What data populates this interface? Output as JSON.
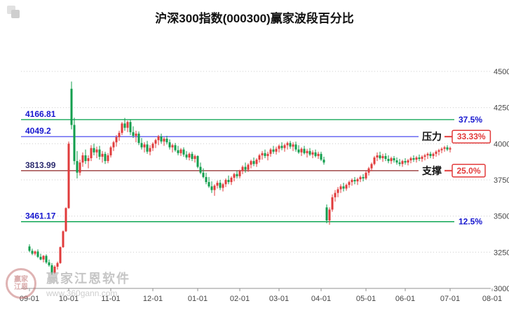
{
  "header": {
    "title": "沪深300指数(000300)赢家波段百分比"
  },
  "watermark": {
    "brand": "赢家江恩软件",
    "url": "www.360gann.com",
    "logo_top": "赢家",
    "logo_bottom": "江恩"
  },
  "colors": {
    "up": "#e03b3b",
    "down": "#129e4d",
    "box_red": "#e23a3a",
    "axis_text": "#444444",
    "grid": "#cccccc",
    "axis_line": "#909090"
  },
  "chart_data": {
    "type": "candlestick",
    "title": "沪深300指数(000300)赢家波段百分比",
    "legend": [],
    "grid": "dotted-horizontal",
    "y_axis": {
      "min": 3000,
      "max": 4500,
      "ticks": [
        4500,
        4250,
        4000,
        3750,
        3500,
        3250,
        3000
      ],
      "position": "right"
    },
    "x_axis": {
      "months": [
        {
          "label": "09-01",
          "i": 0
        },
        {
          "label": "10-01",
          "i": 14
        },
        {
          "label": "11-01",
          "i": 29
        },
        {
          "label": "12-01",
          "i": 44
        },
        {
          "label": "01-01",
          "i": 60
        },
        {
          "label": "02-01",
          "i": 75
        },
        {
          "label": "03-01",
          "i": 89
        },
        {
          "label": "04-01",
          "i": 104
        },
        {
          "label": "05-01",
          "i": 120
        },
        {
          "label": "06-01",
          "i": 134
        },
        {
          "label": "07-01",
          "i": 150
        },
        {
          "label": "08-01",
          "i": 165
        }
      ]
    },
    "levels": [
      {
        "price": 4166.81,
        "price_label": "4166.81",
        "right_label": "37.5%",
        "line_color": "#00a04a",
        "label_color": "#1717cf"
      },
      {
        "price": 4049.2,
        "price_label": "4049.2",
        "tag": "压力",
        "box_label": "33.33%",
        "line_color": "#5b5bf0",
        "label_color": "#1717cf"
      },
      {
        "price": 3813.99,
        "price_label": "3813.99",
        "tag": "支撑",
        "box_label": "25.0%",
        "line_color": "#9a3a3a",
        "label_color": "#2a2a6e"
      },
      {
        "price": 3461.17,
        "price_label": "3461.17",
        "right_label": "12.5%",
        "line_color": "#00a04a",
        "label_color": "#1717cf"
      }
    ],
    "candles": [
      [
        3290,
        3305,
        3250,
        3260
      ],
      [
        3260,
        3275,
        3230,
        3240
      ],
      [
        3240,
        3262,
        3228,
        3255
      ],
      [
        3255,
        3270,
        3210,
        3218
      ],
      [
        3218,
        3240,
        3195,
        3200
      ],
      [
        3200,
        3230,
        3180,
        3225
      ],
      [
        3225,
        3235,
        3170,
        3180
      ],
      [
        3180,
        3200,
        3150,
        3160
      ],
      [
        3160,
        3175,
        3095,
        3110
      ],
      [
        3110,
        3160,
        3100,
        3150
      ],
      [
        3150,
        3185,
        3130,
        3175
      ],
      [
        3175,
        3290,
        3170,
        3285
      ],
      [
        3285,
        3400,
        3280,
        3395
      ],
      [
        3395,
        3560,
        3390,
        3555
      ],
      [
        3555,
        4015,
        3550,
        4000
      ],
      [
        4380,
        4430,
        4100,
        4130
      ],
      [
        4130,
        4180,
        3855,
        3880
      ],
      [
        3880,
        3950,
        3760,
        3800
      ],
      [
        3800,
        3890,
        3780,
        3870
      ],
      [
        3870,
        3940,
        3840,
        3920
      ],
      [
        3920,
        3960,
        3860,
        3880
      ],
      [
        3880,
        3920,
        3830,
        3900
      ],
      [
        3900,
        3990,
        3880,
        3970
      ],
      [
        3970,
        4000,
        3920,
        3940
      ],
      [
        3940,
        3980,
        3900,
        3960
      ],
      [
        3960,
        3985,
        3890,
        3910
      ],
      [
        3910,
        3950,
        3870,
        3930
      ],
      [
        3930,
        3945,
        3860,
        3880
      ],
      [
        3880,
        3935,
        3865,
        3920
      ],
      [
        3920,
        3985,
        3905,
        3975
      ],
      [
        3975,
        4020,
        3950,
        4010
      ],
      [
        4010,
        4060,
        3980,
        4045
      ],
      [
        4045,
        4090,
        4020,
        4075
      ],
      [
        4075,
        4150,
        4060,
        4140
      ],
      [
        4140,
        4178,
        4090,
        4110
      ],
      [
        4110,
        4160,
        4080,
        4150
      ],
      [
        4150,
        4165,
        4060,
        4080
      ],
      [
        4080,
        4120,
        4040,
        4055
      ],
      [
        4055,
        4090,
        4010,
        4070
      ],
      [
        4070,
        4085,
        3990,
        4005
      ],
      [
        4005,
        4040,
        3960,
        3975
      ],
      [
        3975,
        4010,
        3940,
        3995
      ],
      [
        3995,
        4020,
        3930,
        3945
      ],
      [
        3945,
        3990,
        3920,
        3970
      ],
      [
        3970,
        4010,
        3950,
        4000
      ],
      [
        4000,
        4035,
        3970,
        4025
      ],
      [
        4025,
        4060,
        3990,
        4050
      ],
      [
        4050,
        4070,
        4000,
        4015
      ],
      [
        4015,
        4045,
        3985,
        4035
      ],
      [
        4035,
        4055,
        3995,
        4010
      ],
      [
        4010,
        4030,
        3960,
        3975
      ],
      [
        3975,
        4000,
        3940,
        3990
      ],
      [
        3990,
        4005,
        3945,
        3955
      ],
      [
        3955,
        3985,
        3920,
        3935
      ],
      [
        3935,
        3970,
        3915,
        3960
      ],
      [
        3960,
        3975,
        3910,
        3925
      ],
      [
        3925,
        3950,
        3890,
        3905
      ],
      [
        3905,
        3940,
        3885,
        3930
      ],
      [
        3930,
        3945,
        3880,
        3895
      ],
      [
        3895,
        3925,
        3870,
        3915
      ],
      [
        3915,
        3920,
        3830,
        3840
      ],
      [
        3840,
        3870,
        3790,
        3800
      ],
      [
        3800,
        3830,
        3760,
        3770
      ],
      [
        3770,
        3800,
        3720,
        3735
      ],
      [
        3735,
        3770,
        3695,
        3705
      ],
      [
        3705,
        3740,
        3660,
        3680
      ],
      [
        3680,
        3720,
        3640,
        3710
      ],
      [
        3710,
        3745,
        3690,
        3730
      ],
      [
        3730,
        3750,
        3680,
        3695
      ],
      [
        3695,
        3730,
        3670,
        3720
      ],
      [
        3720,
        3760,
        3700,
        3750
      ],
      [
        3750,
        3780,
        3720,
        3735
      ],
      [
        3735,
        3775,
        3715,
        3765
      ],
      [
        3765,
        3800,
        3740,
        3790
      ],
      [
        3790,
        3815,
        3760,
        3775
      ],
      [
        3775,
        3820,
        3760,
        3810
      ],
      [
        3810,
        3850,
        3790,
        3840
      ],
      [
        3840,
        3870,
        3800,
        3820
      ],
      [
        3820,
        3865,
        3805,
        3855
      ],
      [
        3855,
        3890,
        3830,
        3880
      ],
      [
        3880,
        3905,
        3845,
        3860
      ],
      [
        3860,
        3900,
        3840,
        3890
      ],
      [
        3890,
        3930,
        3870,
        3920
      ],
      [
        3920,
        3950,
        3890,
        3935
      ],
      [
        3935,
        3960,
        3900,
        3915
      ],
      [
        3915,
        3945,
        3885,
        3930
      ],
      [
        3930,
        3970,
        3910,
        3960
      ],
      [
        3960,
        3985,
        3930,
        3945
      ],
      [
        3945,
        3980,
        3925,
        3965
      ],
      [
        3965,
        3995,
        3940,
        3985
      ],
      [
        3985,
        4010,
        3955,
        3970
      ],
      [
        3970,
        4000,
        3945,
        3990
      ],
      [
        3990,
        4015,
        3960,
        4005
      ],
      [
        4005,
        4020,
        3965,
        3980
      ],
      [
        3980,
        4010,
        3950,
        3995
      ],
      [
        3995,
        4015,
        3945,
        3960
      ],
      [
        3960,
        3990,
        3930,
        3940
      ],
      [
        3940,
        3975,
        3915,
        3965
      ],
      [
        3965,
        3985,
        3925,
        3935
      ],
      [
        3935,
        3965,
        3905,
        3950
      ],
      [
        3950,
        3970,
        3915,
        3925
      ],
      [
        3925,
        3955,
        3900,
        3940
      ],
      [
        3940,
        3960,
        3905,
        3915
      ],
      [
        3915,
        3945,
        3895,
        3930
      ],
      [
        3930,
        3945,
        3880,
        3890
      ],
      [
        3890,
        3910,
        3855,
        3870
      ],
      [
        3560,
        3580,
        3450,
        3470
      ],
      [
        3470,
        3560,
        3440,
        3545
      ],
      [
        3545,
        3650,
        3530,
        3630
      ],
      [
        3630,
        3680,
        3600,
        3660
      ],
      [
        3660,
        3700,
        3630,
        3685
      ],
      [
        3685,
        3720,
        3660,
        3705
      ],
      [
        3705,
        3730,
        3670,
        3690
      ],
      [
        3690,
        3725,
        3675,
        3715
      ],
      [
        3715,
        3745,
        3695,
        3735
      ],
      [
        3735,
        3760,
        3710,
        3750
      ],
      [
        3750,
        3770,
        3720,
        3740
      ],
      [
        3740,
        3765,
        3715,
        3755
      ],
      [
        3755,
        3780,
        3735,
        3770
      ],
      [
        3770,
        3790,
        3740,
        3760
      ],
      [
        3760,
        3810,
        3750,
        3800
      ],
      [
        3800,
        3840,
        3780,
        3830
      ],
      [
        3830,
        3870,
        3810,
        3860
      ],
      [
        3860,
        3915,
        3850,
        3905
      ],
      [
        3905,
        3940,
        3880,
        3920
      ],
      [
        3920,
        3945,
        3890,
        3900
      ],
      [
        3900,
        3930,
        3875,
        3915
      ],
      [
        3915,
        3935,
        3880,
        3895
      ],
      [
        3895,
        3920,
        3865,
        3880
      ],
      [
        3880,
        3910,
        3860,
        3900
      ],
      [
        3900,
        3915,
        3870,
        3885
      ],
      [
        3885,
        3905,
        3855,
        3870
      ],
      [
        3870,
        3895,
        3845,
        3860
      ],
      [
        3860,
        3890,
        3840,
        3880
      ],
      [
        3880,
        3900,
        3855,
        3870
      ],
      [
        3870,
        3895,
        3850,
        3885
      ],
      [
        3885,
        3910,
        3865,
        3900
      ],
      [
        3900,
        3920,
        3875,
        3890
      ],
      [
        3890,
        3915,
        3870,
        3905
      ],
      [
        3905,
        3925,
        3880,
        3895
      ],
      [
        3895,
        3920,
        3875,
        3910
      ],
      [
        3910,
        3930,
        3885,
        3920
      ],
      [
        3920,
        3940,
        3895,
        3930
      ],
      [
        3930,
        3945,
        3900,
        3915
      ],
      [
        3915,
        3940,
        3895,
        3930
      ],
      [
        3930,
        3955,
        3910,
        3945
      ],
      [
        3945,
        3965,
        3920,
        3955
      ],
      [
        3955,
        3975,
        3935,
        3965
      ],
      [
        3965,
        3985,
        3945,
        3975
      ],
      [
        3975,
        3990,
        3950,
        3960
      ],
      [
        3960,
        3980,
        3940,
        3970
      ]
    ]
  }
}
